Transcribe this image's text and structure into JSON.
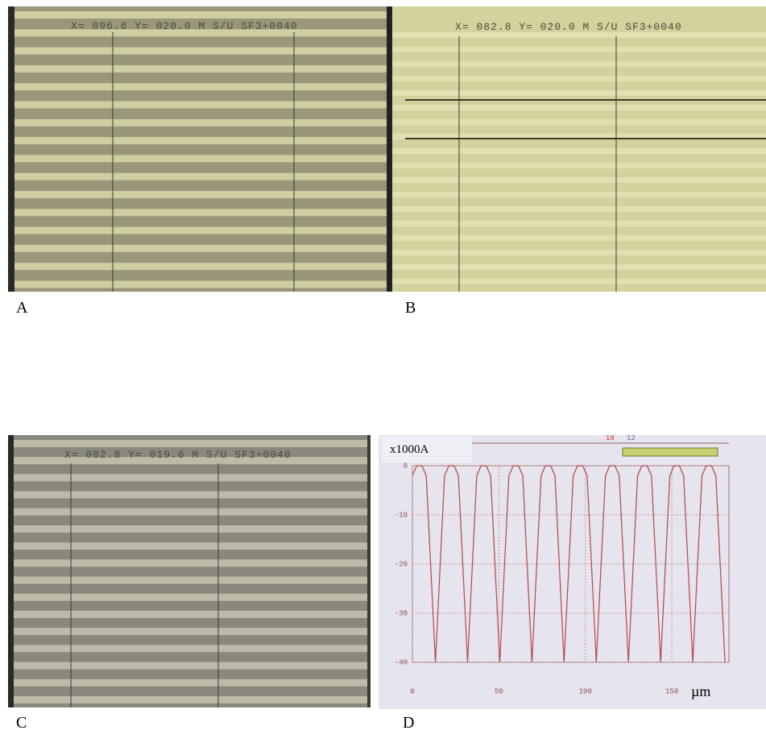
{
  "panels": [
    {
      "label": "A",
      "overlay": "X= 096.6 Y= 020.0 M S/U  SF3+0040"
    },
    {
      "label": "B",
      "overlay": "X= 082.8 Y= 020.0 M S/U  SF3+0040"
    },
    {
      "label": "C",
      "overlay": "X= 082.8 Y= 019.6 M S/U  SF3+0040"
    },
    {
      "label": "D"
    }
  ],
  "chart_data": {
    "type": "line",
    "ylabel": "x1000A",
    "xlabel": "µm",
    "markers": [
      "18",
      "12"
    ],
    "x": [
      0,
      2.5,
      5.5,
      8,
      13.3,
      18.6,
      21.1,
      24.1,
      26.6,
      31.9,
      37.2,
      39.7,
      42.7,
      45.2,
      50.5,
      55.8,
      58.3,
      61.3,
      63.8,
      69.1,
      74.4,
      76.9,
      79.9,
      82.4,
      87.7,
      93.0,
      95.5,
      98.5,
      101.0,
      106.3,
      111.6,
      114.1,
      117.1,
      119.6,
      124.9,
      130.2,
      132.7,
      135.7,
      138.2,
      143.5,
      148.8,
      151.3,
      154.3,
      156.8,
      162.1,
      167.4,
      169.9,
      172.9,
      175.4,
      180.7
    ],
    "values": [
      -2,
      0,
      0,
      -2,
      -40,
      -2,
      0,
      0,
      -2,
      -40,
      -2,
      0,
      0,
      -2,
      -40,
      -2,
      0,
      0,
      -2,
      -40,
      -2,
      0,
      0,
      -2,
      -40,
      -2,
      0,
      0,
      -2,
      -40,
      -2,
      0,
      0,
      -2,
      -40,
      -2,
      0,
      0,
      -2,
      -40,
      -2,
      0,
      0,
      -2,
      -40,
      -2,
      0,
      0,
      -2,
      -40
    ],
    "color": "#b04848",
    "xlim": [
      0,
      183
    ],
    "ylim": [
      -40,
      0
    ],
    "xticks": [
      0,
      50,
      100,
      150
    ],
    "yticks": [
      0,
      -10,
      -20,
      -30,
      -40
    ],
    "grid": true
  }
}
